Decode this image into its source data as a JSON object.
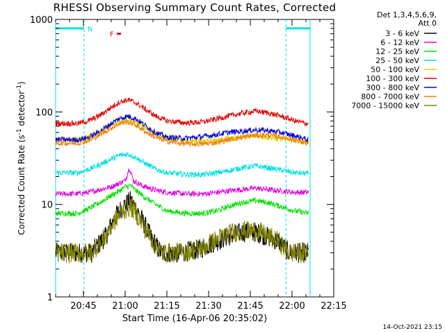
{
  "title": "RHESSI Observing Summary Count Rates, Corrected",
  "footer_timestamp": "14-Oct-2021 23:15",
  "chart_data": {
    "type": "line",
    "title": "RHESSI Observing Summary Count Rates, Corrected",
    "xlabel": "Start Time (16-Apr-06 20:35:02)",
    "ylabel": "Corrected Count Rate (s^-1 detector^-1)",
    "y_scale": "log",
    "ylim": [
      1,
      1000
    ],
    "y_ticks": [
      "1",
      "10",
      "100",
      "1000"
    ],
    "x_range_min": [
      0,
      100
    ],
    "x_ticks": [
      {
        "label": "20:45",
        "min": 10
      },
      {
        "label": "21:00",
        "min": 25
      },
      {
        "label": "21:15",
        "min": 40
      },
      {
        "label": "21:30",
        "min": 55
      },
      {
        "label": "21:45",
        "min": 70
      },
      {
        "label": "22:00",
        "min": 85
      },
      {
        "label": "22:15",
        "min": 100
      }
    ],
    "legend_header": [
      "Det 1,3,4,5,6,9,",
      "Att 0"
    ],
    "legend_position": "right",
    "series": [
      {
        "name": "3 - 6 keV",
        "color": "#000000",
        "points": [
          [
            0,
            3
          ],
          [
            6,
            3
          ],
          [
            10,
            3
          ],
          [
            13,
            3
          ],
          [
            15,
            3.6
          ],
          [
            18,
            4.5
          ],
          [
            21,
            7
          ],
          [
            24,
            9.5
          ],
          [
            27,
            11
          ],
          [
            29,
            9
          ],
          [
            32,
            6
          ],
          [
            35,
            4
          ],
          [
            38,
            3
          ],
          [
            45,
            3
          ],
          [
            52,
            3.3
          ],
          [
            58,
            4
          ],
          [
            62,
            4.5
          ],
          [
            67,
            5
          ],
          [
            72,
            5
          ],
          [
            76,
            4.5
          ],
          [
            80,
            4
          ],
          [
            84,
            3
          ],
          [
            88,
            3
          ],
          [
            91,
            3
          ]
        ]
      },
      {
        "name": "6 - 12 keV",
        "color": "#e000e0",
        "points": [
          [
            0,
            13
          ],
          [
            8,
            13
          ],
          [
            12,
            13.5
          ],
          [
            16,
            14.5
          ],
          [
            20,
            15.5
          ],
          [
            23,
            17
          ],
          [
            25,
            18
          ],
          [
            26.5,
            25
          ],
          [
            28,
            18
          ],
          [
            31,
            16
          ],
          [
            35,
            14.5
          ],
          [
            40,
            13.5
          ],
          [
            47,
            13
          ],
          [
            53,
            13
          ],
          [
            58,
            13.5
          ],
          [
            62,
            14
          ],
          [
            67,
            14.5
          ],
          [
            72,
            15
          ],
          [
            76,
            14.5
          ],
          [
            81,
            14
          ],
          [
            86,
            13.5
          ],
          [
            91,
            13.5
          ]
        ]
      },
      {
        "name": "12 - 25 keV",
        "color": "#00e000",
        "points": [
          [
            0,
            8
          ],
          [
            8,
            8
          ],
          [
            12,
            9
          ],
          [
            16,
            10.5
          ],
          [
            20,
            12.5
          ],
          [
            23,
            14
          ],
          [
            25,
            15.5
          ],
          [
            27,
            16
          ],
          [
            29,
            14
          ],
          [
            32,
            12
          ],
          [
            36,
            10
          ],
          [
            40,
            8.5
          ],
          [
            47,
            8
          ],
          [
            53,
            8
          ],
          [
            58,
            8.5
          ],
          [
            62,
            9.5
          ],
          [
            67,
            10.5
          ],
          [
            72,
            11
          ],
          [
            76,
            10.5
          ],
          [
            81,
            9.5
          ],
          [
            86,
            8.5
          ],
          [
            91,
            8
          ]
        ]
      },
      {
        "name": "25 - 50 keV",
        "color": "#00e0e0",
        "points": [
          [
            0,
            22
          ],
          [
            8,
            22
          ],
          [
            12,
            24
          ],
          [
            16,
            27
          ],
          [
            20,
            31
          ],
          [
            23,
            34
          ],
          [
            26,
            35
          ],
          [
            29,
            32
          ],
          [
            32,
            28
          ],
          [
            36,
            24
          ],
          [
            40,
            22
          ],
          [
            47,
            21
          ],
          [
            53,
            21
          ],
          [
            58,
            22
          ],
          [
            62,
            23
          ],
          [
            67,
            25
          ],
          [
            72,
            26
          ],
          [
            76,
            25
          ],
          [
            81,
            23.5
          ],
          [
            86,
            22
          ],
          [
            91,
            21.5
          ]
        ]
      },
      {
        "name": "50 - 100 keV",
        "color": "#e0d000",
        "points": [
          [
            0,
            50
          ],
          [
            8,
            50
          ],
          [
            12,
            54
          ],
          [
            16,
            62
          ],
          [
            20,
            72
          ],
          [
            23,
            79
          ],
          [
            26,
            82
          ],
          [
            29,
            77
          ],
          [
            32,
            68
          ],
          [
            36,
            58
          ],
          [
            40,
            52
          ],
          [
            47,
            48
          ],
          [
            53,
            48
          ],
          [
            58,
            50
          ],
          [
            62,
            52
          ],
          [
            67,
            54
          ],
          [
            72,
            55
          ],
          [
            76,
            53
          ],
          [
            81,
            51
          ],
          [
            86,
            49
          ],
          [
            91,
            47
          ]
        ]
      },
      {
        "name": "100 - 300 keV",
        "color": "#e00000",
        "points": [
          [
            0,
            75
          ],
          [
            8,
            75
          ],
          [
            12,
            80
          ],
          [
            16,
            92
          ],
          [
            20,
            112
          ],
          [
            23,
            128
          ],
          [
            26,
            135
          ],
          [
            29,
            125
          ],
          [
            32,
            108
          ],
          [
            36,
            90
          ],
          [
            40,
            80
          ],
          [
            47,
            76
          ],
          [
            53,
            78
          ],
          [
            58,
            84
          ],
          [
            62,
            90
          ],
          [
            67,
            97
          ],
          [
            72,
            102
          ],
          [
            76,
            98
          ],
          [
            81,
            90
          ],
          [
            86,
            80
          ],
          [
            91,
            74
          ]
        ]
      },
      {
        "name": "300 - 800 keV",
        "color": "#0000e0",
        "points": [
          [
            0,
            50
          ],
          [
            8,
            50
          ],
          [
            12,
            53
          ],
          [
            16,
            62
          ],
          [
            20,
            75
          ],
          [
            23,
            85
          ],
          [
            26,
            90
          ],
          [
            29,
            84
          ],
          [
            32,
            72
          ],
          [
            36,
            60
          ],
          [
            40,
            53
          ],
          [
            47,
            52
          ],
          [
            53,
            54
          ],
          [
            58,
            57
          ],
          [
            62,
            60
          ],
          [
            67,
            62
          ],
          [
            72,
            64
          ],
          [
            76,
            63
          ],
          [
            81,
            60
          ],
          [
            86,
            55
          ],
          [
            91,
            50
          ]
        ]
      },
      {
        "name": "800 - 7000 keV",
        "color": "#f08000",
        "points": [
          [
            0,
            46
          ],
          [
            8,
            46
          ],
          [
            12,
            49
          ],
          [
            16,
            57
          ],
          [
            20,
            67
          ],
          [
            23,
            75
          ],
          [
            26,
            78
          ],
          [
            29,
            72
          ],
          [
            32,
            62
          ],
          [
            36,
            53
          ],
          [
            40,
            48
          ],
          [
            47,
            45
          ],
          [
            53,
            45
          ],
          [
            58,
            47
          ],
          [
            62,
            50
          ],
          [
            67,
            53
          ],
          [
            72,
            56
          ],
          [
            76,
            56
          ],
          [
            81,
            54
          ],
          [
            86,
            50
          ],
          [
            91,
            45
          ]
        ]
      },
      {
        "name": "7000 - 15000 keV",
        "color": "#808000",
        "points": [
          [
            0,
            3
          ],
          [
            6,
            3
          ],
          [
            10,
            3
          ],
          [
            13,
            3
          ],
          [
            15,
            3.6
          ],
          [
            18,
            4.5
          ],
          [
            21,
            6.5
          ],
          [
            24,
            8.5
          ],
          [
            27,
            9.5
          ],
          [
            29,
            8
          ],
          [
            32,
            5.5
          ],
          [
            35,
            4
          ],
          [
            38,
            3
          ],
          [
            45,
            3
          ],
          [
            52,
            3.3
          ],
          [
            58,
            4.2
          ],
          [
            62,
            4.8
          ],
          [
            67,
            5.2
          ],
          [
            72,
            5.2
          ],
          [
            76,
            4.6
          ],
          [
            80,
            4
          ],
          [
            84,
            3
          ],
          [
            88,
            3
          ],
          [
            91,
            3
          ]
        ]
      }
    ],
    "annotations": [
      {
        "label": "N",
        "color": "#00e0e0",
        "min": 11.5,
        "y": 800
      },
      {
        "label": "F",
        "color": "#e00000",
        "min": 19.5,
        "y": 700
      }
    ],
    "night_intervals_min": [
      [
        0,
        10.2
      ],
      [
        82.8,
        91.5
      ]
    ]
  }
}
